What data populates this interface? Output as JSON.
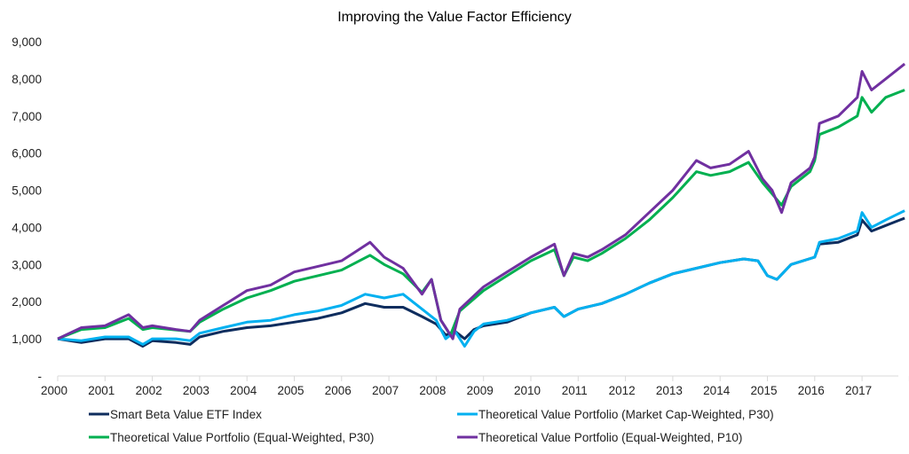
{
  "chart_data": {
    "type": "line",
    "title": "Improving the Value Factor Efficiency",
    "xlabel": "",
    "ylabel": "",
    "xlim": [
      2000,
      2018
    ],
    "ylim": [
      0,
      9000
    ],
    "grid": false,
    "legend_position": "bottom",
    "x_tick_labels": [
      "2000",
      "2001",
      "2002",
      "2003",
      "2004",
      "2005",
      "2006",
      "2007",
      "2008",
      "2009",
      "2010",
      "2011",
      "2012",
      "2013",
      "2014",
      "2015",
      "2016",
      "2017"
    ],
    "y_ticks": [
      0,
      1000,
      2000,
      3000,
      4000,
      5000,
      6000,
      7000,
      8000,
      9000
    ],
    "y_tick_labels": [
      "-",
      "1,000",
      "2,000",
      "3,000",
      "4,000",
      "5,000",
      "6,000",
      "7,000",
      "8,000",
      "9,000"
    ],
    "series": [
      {
        "name": "Smart Beta Value ETF Index",
        "color": "#0e2d5e",
        "x": [
          2000,
          2000.5,
          2001,
          2001.5,
          2001.8,
          2002,
          2002.5,
          2002.8,
          2003,
          2003.5,
          2004,
          2004.5,
          2005,
          2005.5,
          2006,
          2006.5,
          2006.9,
          2007.3,
          2007.7,
          2008,
          2008.2,
          2008.4,
          2008.6,
          2008.8,
          2009,
          2009.5,
          2010,
          2010.5,
          2010.7,
          2011,
          2011.5,
          2012,
          2012.5,
          2013,
          2013.5,
          2014,
          2014.5,
          2014.8,
          2015,
          2015.2,
          2015.5,
          2016,
          2016.1,
          2016.5,
          2016.9,
          2017,
          2017.2,
          2017.5,
          2017.9
        ],
        "y": [
          1000,
          900,
          1000,
          1000,
          800,
          950,
          900,
          850,
          1050,
          1200,
          1300,
          1350,
          1450,
          1550,
          1700,
          1950,
          1850,
          1850,
          1600,
          1400,
          1100,
          1200,
          1000,
          1250,
          1350,
          1450,
          1700,
          1850,
          1600,
          1800,
          1950,
          2200,
          2500,
          2750,
          2900,
          3050,
          3150,
          3100,
          2700,
          2600,
          3000,
          3200,
          3550,
          3600,
          3800,
          4200,
          3900,
          4050,
          4250
        ]
      },
      {
        "name": "Theoretical Value Portfolio (Market Cap-Weighted, P30)",
        "color": "#00b0f0",
        "x": [
          2000,
          2000.5,
          2001,
          2001.5,
          2001.8,
          2002,
          2002.5,
          2002.8,
          2003,
          2003.5,
          2004,
          2004.5,
          2005,
          2005.5,
          2006,
          2006.5,
          2006.9,
          2007.3,
          2007.7,
          2008,
          2008.2,
          2008.4,
          2008.6,
          2008.8,
          2009,
          2009.5,
          2010,
          2010.5,
          2010.7,
          2011,
          2011.5,
          2012,
          2012.5,
          2013,
          2013.5,
          2014,
          2014.5,
          2014.8,
          2015,
          2015.2,
          2015.5,
          2016,
          2016.1,
          2016.5,
          2016.9,
          2017,
          2017.2,
          2017.5,
          2017.9
        ],
        "y": [
          1000,
          950,
          1050,
          1050,
          850,
          1000,
          1000,
          950,
          1150,
          1300,
          1450,
          1500,
          1650,
          1750,
          1900,
          2200,
          2100,
          2200,
          1800,
          1500,
          1000,
          1200,
          800,
          1200,
          1400,
          1500,
          1700,
          1850,
          1600,
          1800,
          1950,
          2200,
          2500,
          2750,
          2900,
          3050,
          3150,
          3100,
          2700,
          2600,
          3000,
          3200,
          3600,
          3700,
          3900,
          4400,
          4000,
          4200,
          4450
        ]
      },
      {
        "name": "Theoretical Value Portfolio (Equal-Weighted, P30)",
        "color": "#00b050",
        "x": [
          2000,
          2000.5,
          2001,
          2001.5,
          2001.8,
          2002,
          2002.8,
          2003,
          2003.5,
          2004,
          2004.5,
          2005,
          2005.5,
          2006,
          2006.6,
          2006.9,
          2007.3,
          2007.7,
          2007.9,
          2008.1,
          2008.3,
          2008.5,
          2009,
          2009.5,
          2010,
          2010.5,
          2010.7,
          2010.9,
          2011.2,
          2011.5,
          2012,
          2012.5,
          2013,
          2013.5,
          2013.8,
          2014.2,
          2014.6,
          2014.9,
          2015.1,
          2015.3,
          2015.5,
          2015.9,
          2016,
          2016.1,
          2016.5,
          2016.9,
          2017,
          2017.2,
          2017.5,
          2017.9
        ],
        "y": [
          1000,
          1250,
          1300,
          1550,
          1250,
          1300,
          1200,
          1450,
          1800,
          2100,
          2300,
          2550,
          2700,
          2850,
          3250,
          3000,
          2750,
          2250,
          2600,
          1500,
          1100,
          1750,
          2300,
          2700,
          3100,
          3400,
          2700,
          3200,
          3100,
          3300,
          3700,
          4200,
          4800,
          5500,
          5400,
          5500,
          5750,
          5200,
          4900,
          4600,
          5100,
          5500,
          5800,
          6500,
          6700,
          7000,
          7500,
          7100,
          7500,
          7700
        ]
      },
      {
        "name": "Theoretical Value Portfolio (Equal-Weighted, P10)",
        "color": "#7030a0",
        "x": [
          2000,
          2000.5,
          2001,
          2001.5,
          2001.8,
          2002,
          2002.5,
          2002.8,
          2003,
          2003.5,
          2004,
          2004.5,
          2005,
          2005.5,
          2006,
          2006.3,
          2006.6,
          2006.9,
          2007.3,
          2007.7,
          2007.9,
          2008.1,
          2008.2,
          2008.35,
          2008.5,
          2009,
          2009.5,
          2010,
          2010.5,
          2010.7,
          2010.9,
          2011.2,
          2011.5,
          2012,
          2012.5,
          2013,
          2013.5,
          2013.8,
          2014.2,
          2014.6,
          2014.9,
          2015.1,
          2015.3,
          2015.5,
          2015.9,
          2016,
          2016.1,
          2016.5,
          2016.9,
          2017,
          2017.2,
          2017.5,
          2017.9
        ],
        "y": [
          1000,
          1300,
          1350,
          1650,
          1300,
          1350,
          1250,
          1200,
          1500,
          1900,
          2300,
          2450,
          2800,
          2950,
          3100,
          3350,
          3600,
          3200,
          2900,
          2200,
          2600,
          1500,
          1300,
          1000,
          1800,
          2400,
          2800,
          3200,
          3550,
          2700,
          3300,
          3200,
          3400,
          3800,
          4400,
          5000,
          5800,
          5600,
          5700,
          6050,
          5300,
          5000,
          4400,
          5200,
          5600,
          5900,
          6800,
          7000,
          7500,
          8200,
          7700,
          8000,
          8400
        ]
      }
    ]
  }
}
